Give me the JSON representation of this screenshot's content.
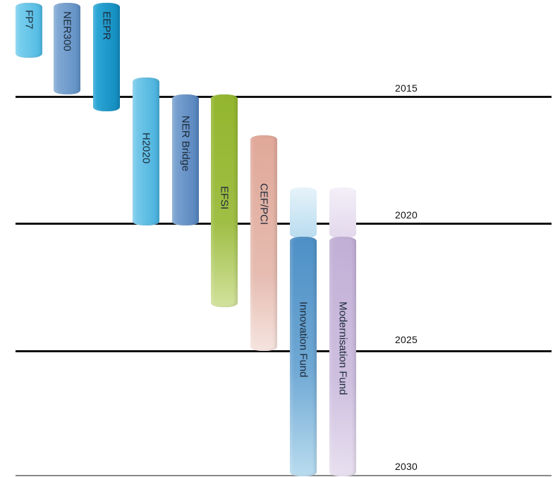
{
  "timeline": {
    "years": [
      {
        "label": "2015"
      },
      {
        "label": "2020"
      },
      {
        "label": "2025"
      },
      {
        "label": "2030"
      }
    ]
  },
  "instruments": [
    {
      "label": "FP7",
      "color": "#5bc2e7"
    },
    {
      "label": "NER300",
      "color": "#6d99c9"
    },
    {
      "label": "EEPR",
      "color": "#1b97c8"
    },
    {
      "label": "H2020",
      "color": "#5bbde4"
    },
    {
      "label": "NER Bridge",
      "color": "#5f8fc6"
    },
    {
      "label": "EFSI",
      "color": "#98b83a"
    },
    {
      "label": "CEF/PCI",
      "color": "#e2b0a5"
    },
    {
      "label": "Innovation Fund",
      "color": "#5a96c9"
    },
    {
      "label": "Modernisation Fund",
      "color": "#c5b3d7"
    }
  ]
}
